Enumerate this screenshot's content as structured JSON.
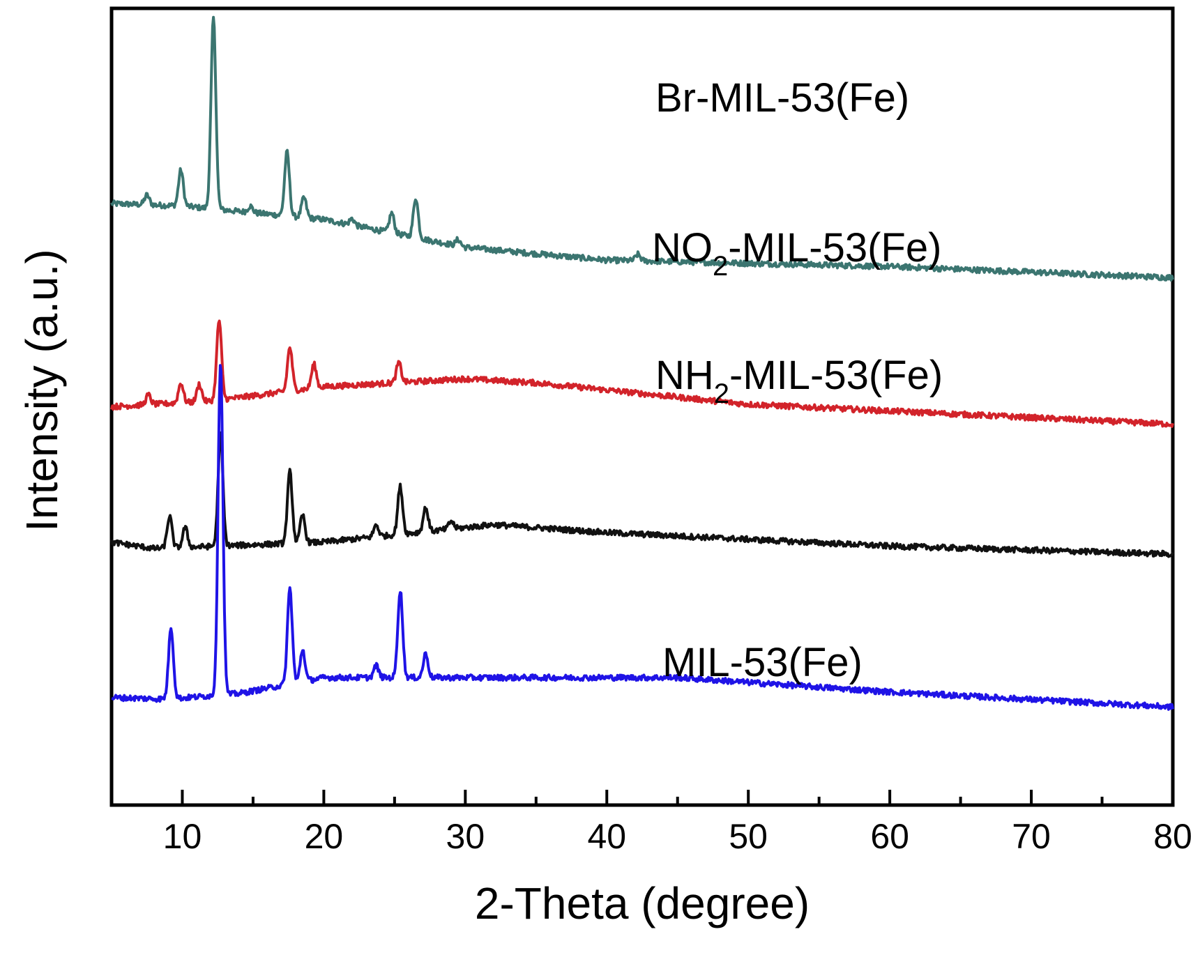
{
  "chart_data": {
    "type": "line",
    "title": "",
    "xlabel": "2-Theta (degree)",
    "ylabel": "Intensity (a.u.)",
    "xlim": [
      5,
      80
    ],
    "x_ticks": [
      10,
      20,
      30,
      40,
      50,
      60,
      70,
      80
    ],
    "y_ticks_shown": false,
    "grid": false,
    "legend": "none; series labelled directly above each curve",
    "series": [
      {
        "name": "Br-MIL-53(Fe)",
        "label_main": "Br-MIL-53(Fe)",
        "label_sub": "",
        "label_tail": "",
        "color": "#3b7570",
        "baseline": [
          [
            5,
            0.755
          ],
          [
            10,
            0.752
          ],
          [
            20,
            0.735
          ],
          [
            30,
            0.7
          ],
          [
            40,
            0.684
          ],
          [
            60,
            0.676
          ],
          [
            80,
            0.662
          ]
        ],
        "peaks": [
          [
            7.5,
            0.012
          ],
          [
            9.9,
            0.045
          ],
          [
            12.2,
            0.24
          ],
          [
            14.8,
            0.008
          ],
          [
            17.4,
            0.08
          ],
          [
            18.6,
            0.025
          ],
          [
            22,
            0.008
          ],
          [
            24.8,
            0.025
          ],
          [
            26.5,
            0.05
          ],
          [
            29.5,
            0.008
          ],
          [
            42.2,
            0.008
          ]
        ]
      },
      {
        "name": "NO2-MIL-53(Fe)",
        "label_main": "NO",
        "label_sub": "2",
        "label_tail": "-MIL-53(Fe)",
        "color": "#d2232a",
        "baseline": [
          [
            5,
            0.5
          ],
          [
            12,
            0.507
          ],
          [
            20,
            0.525
          ],
          [
            30,
            0.535
          ],
          [
            35,
            0.53
          ],
          [
            50,
            0.503
          ],
          [
            80,
            0.478
          ]
        ],
        "peaks": [
          [
            7.6,
            0.012
          ],
          [
            9.9,
            0.025
          ],
          [
            11.2,
            0.022
          ],
          [
            12.6,
            0.1
          ],
          [
            17.6,
            0.055
          ],
          [
            19.3,
            0.03
          ],
          [
            25.3,
            0.025
          ]
        ]
      },
      {
        "name": "NH2-MIL-53(Fe)",
        "label_main": "NH",
        "label_sub": "2",
        "label_tail": "-MIL-53(Fe)",
        "color": "#111111",
        "baseline": [
          [
            5,
            0.33
          ],
          [
            8,
            0.322
          ],
          [
            20,
            0.33
          ],
          [
            32,
            0.352
          ],
          [
            40,
            0.342
          ],
          [
            60,
            0.325
          ],
          [
            80,
            0.315
          ]
        ],
        "peaks": [
          [
            9.1,
            0.04
          ],
          [
            10.2,
            0.025
          ],
          [
            12.7,
            0.14
          ],
          [
            17.6,
            0.09
          ],
          [
            18.5,
            0.035
          ],
          [
            23.7,
            0.015
          ],
          [
            25.4,
            0.06
          ],
          [
            27.2,
            0.03
          ],
          [
            29,
            0.01
          ]
        ]
      },
      {
        "name": "MIL-53(Fe)",
        "label_main": "MIL-53(Fe)",
        "label_sub": "",
        "label_tail": "",
        "color": "#1f13e6",
        "baseline": [
          [
            5,
            0.135
          ],
          [
            9,
            0.133
          ],
          [
            14,
            0.14
          ],
          [
            20,
            0.16
          ],
          [
            30,
            0.16
          ],
          [
            45,
            0.16
          ],
          [
            60,
            0.142
          ],
          [
            80,
            0.123
          ]
        ],
        "peaks": [
          [
            9.2,
            0.09
          ],
          [
            12.7,
            0.42
          ],
          [
            17.6,
            0.12
          ],
          [
            18.5,
            0.04
          ],
          [
            23.7,
            0.015
          ],
          [
            25.4,
            0.11
          ],
          [
            27.2,
            0.03
          ]
        ]
      }
    ]
  }
}
